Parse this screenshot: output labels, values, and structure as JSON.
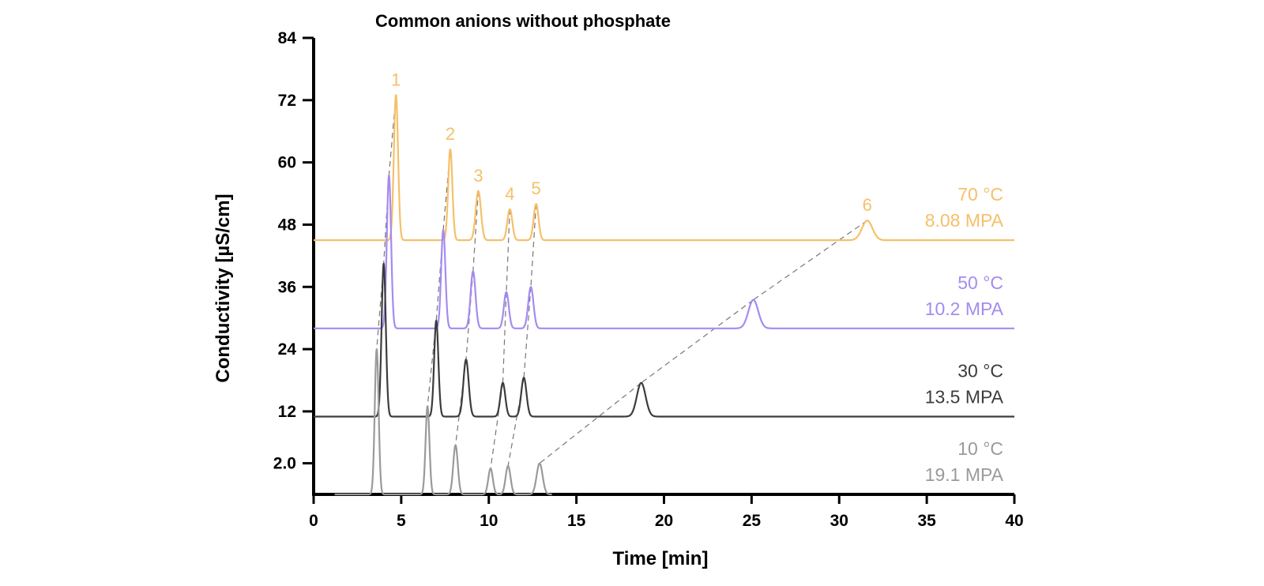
{
  "chart_data": {
    "type": "line",
    "title": "Common anions without phosphate",
    "xlabel": "Time [min]",
    "ylabel": "Conductivity [µS/cm]",
    "xlim": [
      0,
      40
    ],
    "ylim": [
      -4,
      84
    ],
    "x_ticks": [
      {
        "value": 0,
        "label": "0"
      },
      {
        "value": 5,
        "label": "5"
      },
      {
        "value": 10,
        "label": "10"
      },
      {
        "value": 15,
        "label": "15"
      },
      {
        "value": 20,
        "label": "20"
      },
      {
        "value": 25,
        "label": "25"
      },
      {
        "value": 30,
        "label": "30"
      },
      {
        "value": 35,
        "label": "35"
      },
      {
        "value": 40,
        "label": "40"
      }
    ],
    "y_ticks": [
      {
        "value": 2,
        "label": "2.0"
      },
      {
        "value": 12,
        "label": "12"
      },
      {
        "value": 24,
        "label": "24"
      },
      {
        "value": 36,
        "label": "36"
      },
      {
        "value": 48,
        "label": "48"
      },
      {
        "value": 60,
        "label": "60"
      },
      {
        "value": 72,
        "label": "72"
      },
      {
        "value": 84,
        "label": "84"
      }
    ],
    "grid": false,
    "series": [
      {
        "temperature_label": "70 °C",
        "pressure_label": "8.08 MPA",
        "color": "#F5C06A",
        "baseline": 45,
        "x_start": 0,
        "x_end": 40,
        "peaks": [
          {
            "time": 4.7,
            "height": 73,
            "width": 0.12
          },
          {
            "time": 7.8,
            "height": 62.5,
            "width": 0.12
          },
          {
            "time": 9.4,
            "height": 54.5,
            "width": 0.15
          },
          {
            "time": 11.2,
            "height": 51,
            "width": 0.14
          },
          {
            "time": 12.7,
            "height": 52,
            "width": 0.14
          },
          {
            "time": 31.6,
            "height": 48.8,
            "width": 0.3
          }
        ]
      },
      {
        "temperature_label": "50 °C",
        "pressure_label": "10.2 MPA",
        "color": "#A58BF0",
        "baseline": 28,
        "x_start": 0,
        "x_end": 40,
        "peaks": [
          {
            "time": 4.3,
            "height": 57.5,
            "width": 0.12
          },
          {
            "time": 7.4,
            "height": 47,
            "width": 0.12
          },
          {
            "time": 9.1,
            "height": 39,
            "width": 0.14
          },
          {
            "time": 11.0,
            "height": 35,
            "width": 0.14
          },
          {
            "time": 12.4,
            "height": 36,
            "width": 0.15
          },
          {
            "time": 25.1,
            "height": 33.5,
            "width": 0.28
          }
        ]
      },
      {
        "temperature_label": "30 °C",
        "pressure_label": "13.5 MPA",
        "color": "#3C3C3C",
        "baseline": 11,
        "x_start": 0,
        "x_end": 40,
        "peaks": [
          {
            "time": 4.0,
            "height": 40.5,
            "width": 0.12
          },
          {
            "time": 7.0,
            "height": 29.5,
            "width": 0.12
          },
          {
            "time": 8.7,
            "height": 22,
            "width": 0.15
          },
          {
            "time": 10.8,
            "height": 17.5,
            "width": 0.14
          },
          {
            "time": 12.0,
            "height": 18.5,
            "width": 0.15
          },
          {
            "time": 18.7,
            "height": 17.5,
            "width": 0.25
          }
        ]
      },
      {
        "temperature_label": "10 °C",
        "pressure_label": "19.1 MPA",
        "color": "#9A9A9A",
        "baseline": -4,
        "x_start": 1.2,
        "x_end": 13.6,
        "peaks": [
          {
            "time": 3.6,
            "height": 24,
            "width": 0.11
          },
          {
            "time": 6.5,
            "height": 13,
            "width": 0.11
          },
          {
            "time": 8.1,
            "height": 5.5,
            "width": 0.13
          },
          {
            "time": 10.1,
            "height": 1,
            "width": 0.13
          },
          {
            "time": 11.1,
            "height": 1.5,
            "width": 0.14
          },
          {
            "time": 12.9,
            "height": 2,
            "width": 0.17
          }
        ]
      }
    ],
    "peak_labels": [
      "1",
      "2",
      "3",
      "4",
      "5",
      "6"
    ],
    "peak_label_color": "#F5C06A"
  }
}
